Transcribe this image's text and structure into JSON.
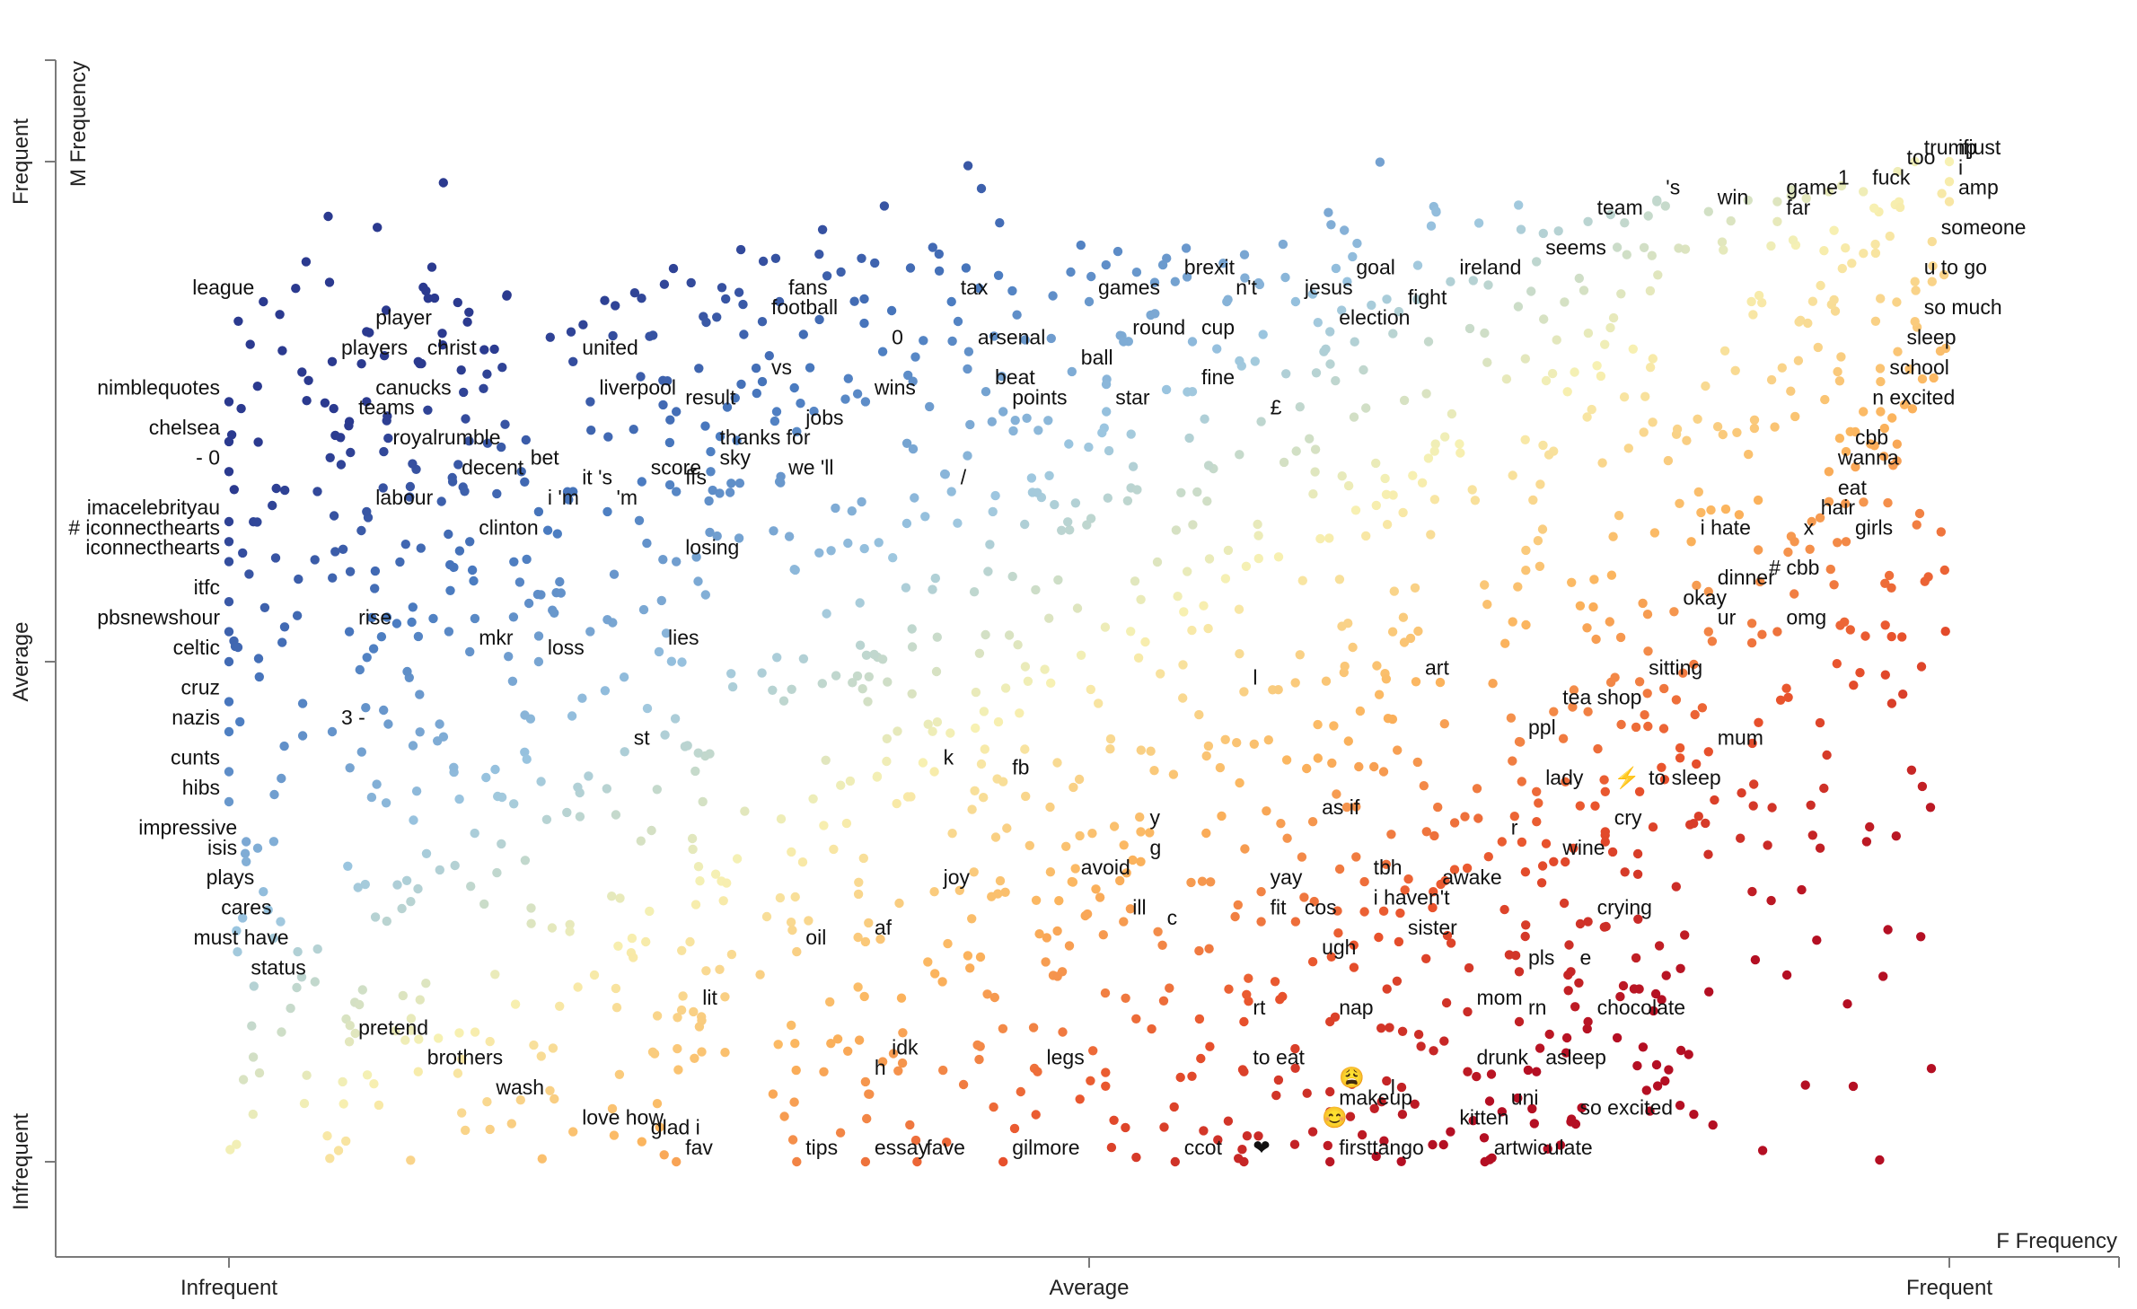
{
  "chart_data": {
    "type": "scatter",
    "title": "",
    "xlabel": "F Frequency",
    "ylabel": "M Frequency",
    "xlim": [
      0,
      1
    ],
    "ylim": [
      0,
      1
    ],
    "x_ticks": [
      "Infrequent",
      "Average",
      "Frequent"
    ],
    "y_ticks": [
      "Infrequent",
      "Average",
      "Frequent"
    ],
    "color_scale": [
      "#2b3a8f",
      "#4a7bc0",
      "#9cc6e0",
      "#f7f1b3",
      "#fbb45d",
      "#e8522c",
      "#b40f23"
    ],
    "grid": false,
    "legend": "none",
    "labeled_points": [
      {
        "term": "league",
        "x": 0.02,
        "y": 0.86
      },
      {
        "term": "player",
        "x": 0.08,
        "y": 0.83
      },
      {
        "term": "players",
        "x": 0.06,
        "y": 0.8
      },
      {
        "term": "christ",
        "x": 0.11,
        "y": 0.8
      },
      {
        "term": "united",
        "x": 0.2,
        "y": 0.8
      },
      {
        "term": "nimblequotes",
        "x": 0.0,
        "y": 0.76
      },
      {
        "term": "canucks",
        "x": 0.08,
        "y": 0.76
      },
      {
        "term": "liverpool",
        "x": 0.21,
        "y": 0.76
      },
      {
        "term": "result",
        "x": 0.26,
        "y": 0.75
      },
      {
        "term": "teams",
        "x": 0.07,
        "y": 0.74
      },
      {
        "term": "chelsea",
        "x": 0.0,
        "y": 0.72
      },
      {
        "term": "royalrumble",
        "x": 0.09,
        "y": 0.71
      },
      {
        "term": "bet",
        "x": 0.17,
        "y": 0.69
      },
      {
        "term": "- 0",
        "x": 0.0,
        "y": 0.69
      },
      {
        "term": "decent",
        "x": 0.13,
        "y": 0.68
      },
      {
        "term": "it 's",
        "x": 0.2,
        "y": 0.67
      },
      {
        "term": "score",
        "x": 0.24,
        "y": 0.68
      },
      {
        "term": "labour",
        "x": 0.08,
        "y": 0.65
      },
      {
        "term": "i 'm",
        "x": 0.18,
        "y": 0.65
      },
      {
        "term": "'m",
        "x": 0.22,
        "y": 0.65
      },
      {
        "term": "imacelebrityau",
        "x": 0.0,
        "y": 0.64
      },
      {
        "term": "# iconnecthearts",
        "x": 0.0,
        "y": 0.62
      },
      {
        "term": "clinton",
        "x": 0.14,
        "y": 0.62
      },
      {
        "term": "iconnecthearts",
        "x": 0.0,
        "y": 0.6
      },
      {
        "term": "itfc",
        "x": 0.0,
        "y": 0.56
      },
      {
        "term": "pbsnewshour",
        "x": 0.0,
        "y": 0.53
      },
      {
        "term": "rise",
        "x": 0.07,
        "y": 0.53
      },
      {
        "term": "celtic",
        "x": 0.0,
        "y": 0.5
      },
      {
        "term": "mkr",
        "x": 0.14,
        "y": 0.51
      },
      {
        "term": "loss",
        "x": 0.18,
        "y": 0.5
      },
      {
        "term": "cruz",
        "x": 0.0,
        "y": 0.46
      },
      {
        "term": "nazis",
        "x": 0.0,
        "y": 0.43
      },
      {
        "term": "3 -",
        "x": 0.06,
        "y": 0.43
      },
      {
        "term": "cunts",
        "x": 0.0,
        "y": 0.39
      },
      {
        "term": "hibs",
        "x": 0.0,
        "y": 0.36
      },
      {
        "term": "impressive",
        "x": 0.01,
        "y": 0.32
      },
      {
        "term": "isis",
        "x": 0.01,
        "y": 0.3
      },
      {
        "term": "plays",
        "x": 0.02,
        "y": 0.27
      },
      {
        "term": "cares",
        "x": 0.03,
        "y": 0.24
      },
      {
        "term": "must have",
        "x": 0.04,
        "y": 0.21
      },
      {
        "term": "status",
        "x": 0.05,
        "y": 0.18
      },
      {
        "term": "pretend",
        "x": 0.07,
        "y": 0.12
      },
      {
        "term": "brothers",
        "x": 0.11,
        "y": 0.09
      },
      {
        "term": "wash",
        "x": 0.15,
        "y": 0.06
      },
      {
        "term": "love how",
        "x": 0.2,
        "y": 0.03
      },
      {
        "term": "glad i",
        "x": 0.24,
        "y": 0.02
      },
      {
        "term": "fav",
        "x": 0.26,
        "y": 0.0
      },
      {
        "term": "tips",
        "x": 0.33,
        "y": 0.0
      },
      {
        "term": "essay",
        "x": 0.37,
        "y": 0.0
      },
      {
        "term": "fave",
        "x": 0.4,
        "y": 0.0
      },
      {
        "term": "gilmore",
        "x": 0.45,
        "y": 0.0
      },
      {
        "term": "ccot",
        "x": 0.55,
        "y": 0.0
      },
      {
        "term": "firsttango",
        "x": 0.64,
        "y": 0.0
      },
      {
        "term": "artwiculate",
        "x": 0.73,
        "y": 0.0
      },
      {
        "term": "fans",
        "x": 0.32,
        "y": 0.86
      },
      {
        "term": "football",
        "x": 0.31,
        "y": 0.84
      },
      {
        "term": "tax",
        "x": 0.42,
        "y": 0.86
      },
      {
        "term": "0",
        "x": 0.38,
        "y": 0.81
      },
      {
        "term": "arsenal",
        "x": 0.43,
        "y": 0.81
      },
      {
        "term": "vs",
        "x": 0.31,
        "y": 0.78
      },
      {
        "term": "wins",
        "x": 0.37,
        "y": 0.76
      },
      {
        "term": "beat",
        "x": 0.44,
        "y": 0.77
      },
      {
        "term": "points",
        "x": 0.45,
        "y": 0.75
      },
      {
        "term": "jobs",
        "x": 0.33,
        "y": 0.73
      },
      {
        "term": "thanks for",
        "x": 0.28,
        "y": 0.71
      },
      {
        "term": "sky",
        "x": 0.28,
        "y": 0.69
      },
      {
        "term": "we 'll",
        "x": 0.32,
        "y": 0.68
      },
      {
        "term": "ffs",
        "x": 0.26,
        "y": 0.67
      },
      {
        "term": "/",
        "x": 0.42,
        "y": 0.67
      },
      {
        "term": "losing",
        "x": 0.26,
        "y": 0.6
      },
      {
        "term": "lies",
        "x": 0.25,
        "y": 0.51
      },
      {
        "term": "st",
        "x": 0.23,
        "y": 0.41
      },
      {
        "term": "games",
        "x": 0.5,
        "y": 0.86
      },
      {
        "term": "brexit",
        "x": 0.55,
        "y": 0.88
      },
      {
        "term": "n't",
        "x": 0.58,
        "y": 0.86
      },
      {
        "term": "jesus",
        "x": 0.62,
        "y": 0.86
      },
      {
        "term": "goal",
        "x": 0.65,
        "y": 0.88
      },
      {
        "term": "ireland",
        "x": 0.71,
        "y": 0.88
      },
      {
        "term": "fight",
        "x": 0.68,
        "y": 0.85
      },
      {
        "term": "seems",
        "x": 0.76,
        "y": 0.9
      },
      {
        "term": "round",
        "x": 0.52,
        "y": 0.82
      },
      {
        "term": "cup",
        "x": 0.56,
        "y": 0.82
      },
      {
        "term": "election",
        "x": 0.64,
        "y": 0.83
      },
      {
        "term": "ball",
        "x": 0.49,
        "y": 0.79
      },
      {
        "term": "fine",
        "x": 0.56,
        "y": 0.77
      },
      {
        "term": "star",
        "x": 0.51,
        "y": 0.75
      },
      {
        "term": "£",
        "x": 0.6,
        "y": 0.74
      },
      {
        "term": "team",
        "x": 0.79,
        "y": 0.94
      },
      {
        "term": "'s",
        "x": 0.83,
        "y": 0.96
      },
      {
        "term": "win",
        "x": 0.86,
        "y": 0.95
      },
      {
        "term": "game",
        "x": 0.9,
        "y": 0.96
      },
      {
        "term": "far",
        "x": 0.9,
        "y": 0.94
      },
      {
        "term": "1",
        "x": 0.93,
        "y": 0.97
      },
      {
        "term": "fuck",
        "x": 0.95,
        "y": 0.97
      },
      {
        "term": "too",
        "x": 0.97,
        "y": 0.99
      },
      {
        "term": "trump",
        "x": 0.98,
        "y": 1.0
      },
      {
        "term": "ifjust",
        "x": 1.0,
        "y": 1.0
      },
      {
        "term": "i",
        "x": 1.0,
        "y": 0.98
      },
      {
        "term": "amp",
        "x": 1.0,
        "y": 0.96
      },
      {
        "term": "someone",
        "x": 0.99,
        "y": 0.92
      },
      {
        "term": "u",
        "x": 0.98,
        "y": 0.88
      },
      {
        "term": "to go",
        "x": 0.99,
        "y": 0.88
      },
      {
        "term": "so much",
        "x": 0.98,
        "y": 0.84
      },
      {
        "term": "sleep",
        "x": 0.97,
        "y": 0.81
      },
      {
        "term": "school",
        "x": 0.96,
        "y": 0.78
      },
      {
        "term": "excited",
        "x": 0.96,
        "y": 0.75
      },
      {
        "term": "n",
        "x": 0.95,
        "y": 0.75
      },
      {
        "term": "cbb",
        "x": 0.94,
        "y": 0.71
      },
      {
        "term": "wanna",
        "x": 0.93,
        "y": 0.69
      },
      {
        "term": "eat",
        "x": 0.93,
        "y": 0.66
      },
      {
        "term": "hair",
        "x": 0.92,
        "y": 0.64
      },
      {
        "term": "girls",
        "x": 0.94,
        "y": 0.62
      },
      {
        "term": "x",
        "x": 0.91,
        "y": 0.62
      },
      {
        "term": "i hate",
        "x": 0.85,
        "y": 0.62
      },
      {
        "term": "dinner",
        "x": 0.86,
        "y": 0.57
      },
      {
        "term": "# cbb",
        "x": 0.89,
        "y": 0.58
      },
      {
        "term": "okay",
        "x": 0.84,
        "y": 0.55
      },
      {
        "term": "ur",
        "x": 0.86,
        "y": 0.53
      },
      {
        "term": "omg",
        "x": 0.9,
        "y": 0.53
      },
      {
        "term": "sitting",
        "x": 0.82,
        "y": 0.48
      },
      {
        "term": "art",
        "x": 0.69,
        "y": 0.48
      },
      {
        "term": "tea",
        "x": 0.77,
        "y": 0.45
      },
      {
        "term": "shop",
        "x": 0.79,
        "y": 0.45
      },
      {
        "term": "mum",
        "x": 0.86,
        "y": 0.41
      },
      {
        "term": "ppl",
        "x": 0.75,
        "y": 0.42
      },
      {
        "term": "lady",
        "x": 0.76,
        "y": 0.37
      },
      {
        "term": "⚡",
        "x": 0.8,
        "y": 0.37
      },
      {
        "term": "to sleep",
        "x": 0.82,
        "y": 0.37
      },
      {
        "term": "l",
        "x": 0.59,
        "y": 0.47
      },
      {
        "term": "k",
        "x": 0.41,
        "y": 0.39
      },
      {
        "term": "fb",
        "x": 0.45,
        "y": 0.38
      },
      {
        "term": "as if",
        "x": 0.63,
        "y": 0.34
      },
      {
        "term": "y",
        "x": 0.53,
        "y": 0.33
      },
      {
        "term": "cry",
        "x": 0.8,
        "y": 0.33
      },
      {
        "term": "r",
        "x": 0.74,
        "y": 0.32
      },
      {
        "term": "g",
        "x": 0.53,
        "y": 0.3
      },
      {
        "term": "wine",
        "x": 0.77,
        "y": 0.3
      },
      {
        "term": "avoid",
        "x": 0.49,
        "y": 0.28
      },
      {
        "term": "tbh",
        "x": 0.66,
        "y": 0.28
      },
      {
        "term": "yay",
        "x": 0.6,
        "y": 0.27
      },
      {
        "term": "awake",
        "x": 0.7,
        "y": 0.27
      },
      {
        "term": "joy",
        "x": 0.41,
        "y": 0.27
      },
      {
        "term": "i haven't",
        "x": 0.66,
        "y": 0.25
      },
      {
        "term": "crying",
        "x": 0.79,
        "y": 0.24
      },
      {
        "term": "fit",
        "x": 0.6,
        "y": 0.24
      },
      {
        "term": "cos",
        "x": 0.62,
        "y": 0.24
      },
      {
        "term": "ill",
        "x": 0.52,
        "y": 0.24
      },
      {
        "term": "sister",
        "x": 0.68,
        "y": 0.22
      },
      {
        "term": "c",
        "x": 0.54,
        "y": 0.23
      },
      {
        "term": "af",
        "x": 0.37,
        "y": 0.22
      },
      {
        "term": "oil",
        "x": 0.33,
        "y": 0.21
      },
      {
        "term": "ugh",
        "x": 0.63,
        "y": 0.2
      },
      {
        "term": "pls",
        "x": 0.75,
        "y": 0.19
      },
      {
        "term": "e",
        "x": 0.78,
        "y": 0.19
      },
      {
        "term": "lit",
        "x": 0.27,
        "y": 0.15
      },
      {
        "term": "rt",
        "x": 0.59,
        "y": 0.14
      },
      {
        "term": "nap",
        "x": 0.64,
        "y": 0.14
      },
      {
        "term": "mom",
        "x": 0.72,
        "y": 0.15
      },
      {
        "term": "rn",
        "x": 0.75,
        "y": 0.14
      },
      {
        "term": "chocolate",
        "x": 0.79,
        "y": 0.14
      },
      {
        "term": "idk",
        "x": 0.38,
        "y": 0.1
      },
      {
        "term": "legs",
        "x": 0.47,
        "y": 0.09
      },
      {
        "term": "to eat",
        "x": 0.59,
        "y": 0.09
      },
      {
        "term": "drunk",
        "x": 0.72,
        "y": 0.09
      },
      {
        "term": "asleep",
        "x": 0.76,
        "y": 0.09
      },
      {
        "term": "h",
        "x": 0.37,
        "y": 0.08
      },
      {
        "term": "😩",
        "x": 0.64,
        "y": 0.07
      },
      {
        "term": "l",
        "x": 0.67,
        "y": 0.06
      },
      {
        "term": "makeup",
        "x": 0.64,
        "y": 0.05
      },
      {
        "term": "uni",
        "x": 0.74,
        "y": 0.05
      },
      {
        "term": "so excited",
        "x": 0.78,
        "y": 0.04
      },
      {
        "term": "kitten",
        "x": 0.71,
        "y": 0.03
      },
      {
        "term": "😊",
        "x": 0.63,
        "y": 0.03
      },
      {
        "term": "❤",
        "x": 0.59,
        "y": 0.0
      }
    ]
  }
}
